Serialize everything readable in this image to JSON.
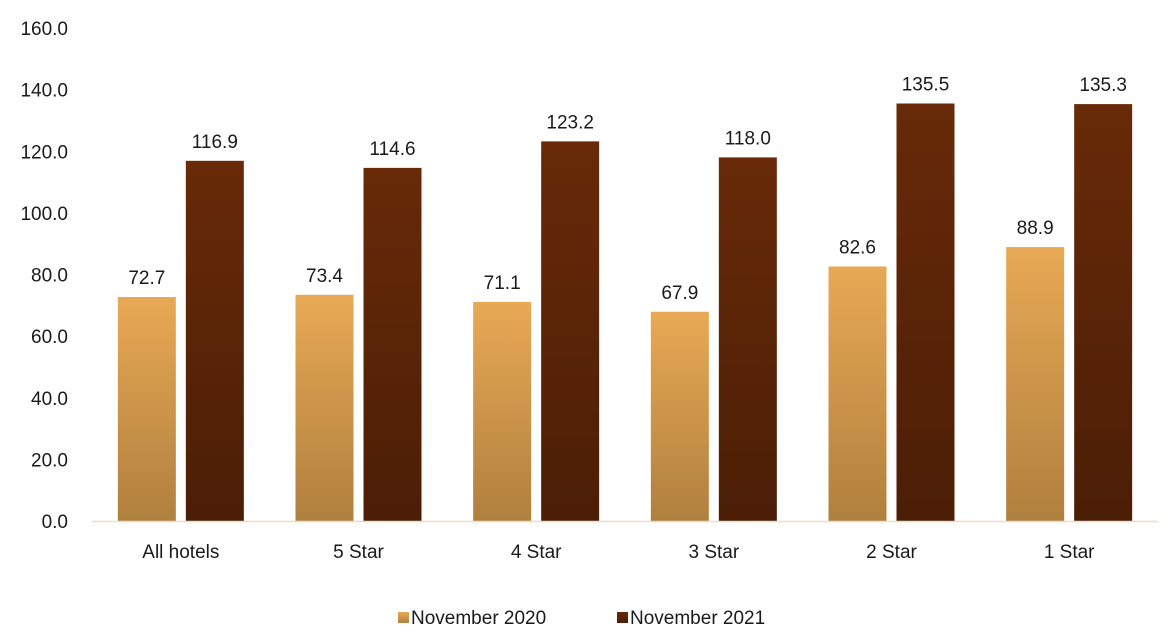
{
  "chart_data": {
    "type": "bar",
    "title": "",
    "xlabel": "",
    "ylabel": "",
    "categories": [
      "All hotels",
      "5 Star",
      "4 Star",
      "3 Star",
      "2 Star",
      "1 Star"
    ],
    "series": [
      {
        "name": "November 2020",
        "values": [
          72.7,
          73.4,
          71.1,
          67.9,
          82.6,
          88.9
        ],
        "value_labels": [
          "72.7",
          "73.4",
          "71.1",
          "67.9",
          "82.6",
          "88.9"
        ],
        "color": "#e3a552"
      },
      {
        "name": "November 2021",
        "values": [
          116.9,
          114.6,
          123.2,
          118.0,
          135.5,
          135.3
        ],
        "value_labels": [
          "116.9",
          "114.6",
          "123.2",
          "118.0",
          "135.5",
          "135.3"
        ],
        "color": "#5e2507"
      }
    ],
    "ylim": [
      0,
      160
    ],
    "yticks": [
      "0.0",
      "20.0",
      "40.0",
      "60.0",
      "80.0",
      "100.0",
      "120.0",
      "140.0",
      "160.0"
    ],
    "grid": false,
    "legend_position": "bottom"
  }
}
